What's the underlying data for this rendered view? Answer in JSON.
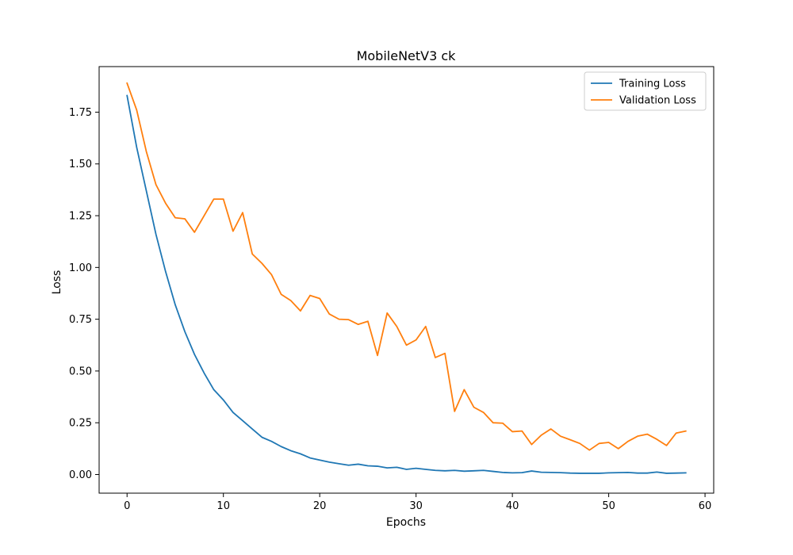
{
  "chart_data": {
    "type": "line",
    "title": "MobileNetV3 ck",
    "xlabel": "Epochs",
    "ylabel": "Loss",
    "xlim": [
      -2.9,
      60.9
    ],
    "ylim": [
      -0.09,
      1.97
    ],
    "xticks": [
      0,
      10,
      20,
      30,
      40,
      50,
      60
    ],
    "yticks": [
      0.0,
      0.25,
      0.5,
      0.75,
      1.0,
      1.25,
      1.5,
      1.75
    ],
    "xtick_labels": [
      "0",
      "10",
      "20",
      "30",
      "40",
      "50",
      "60"
    ],
    "ytick_labels": [
      "0.00",
      "0.25",
      "0.50",
      "0.75",
      "1.00",
      "1.25",
      "1.50",
      "1.75"
    ],
    "grid": false,
    "legend_position": "top-right",
    "x": [
      0,
      1,
      2,
      3,
      4,
      5,
      6,
      7,
      8,
      9,
      10,
      11,
      12,
      13,
      14,
      15,
      16,
      17,
      18,
      19,
      20,
      21,
      22,
      23,
      24,
      25,
      26,
      27,
      28,
      29,
      30,
      31,
      32,
      33,
      34,
      35,
      36,
      37,
      38,
      39,
      40,
      41,
      42,
      43,
      44,
      45,
      46,
      47,
      48,
      49,
      50,
      51,
      52,
      53,
      54,
      55,
      56,
      57,
      58
    ],
    "series": [
      {
        "name": "Training Loss",
        "color": "#1f77b4",
        "values": [
          1.83,
          1.58,
          1.37,
          1.16,
          0.98,
          0.82,
          0.69,
          0.58,
          0.49,
          0.41,
          0.36,
          0.3,
          0.26,
          0.22,
          0.18,
          0.16,
          0.135,
          0.115,
          0.1,
          0.08,
          0.07,
          0.06,
          0.052,
          0.045,
          0.05,
          0.042,
          0.04,
          0.032,
          0.035,
          0.025,
          0.03,
          0.025,
          0.02,
          0.018,
          0.02,
          0.016,
          0.018,
          0.02,
          0.015,
          0.01,
          0.008,
          0.009,
          0.017,
          0.011,
          0.01,
          0.009,
          0.007,
          0.006,
          0.006,
          0.006,
          0.008,
          0.009,
          0.01,
          0.007,
          0.007,
          0.012,
          0.006,
          0.007,
          0.008
        ]
      },
      {
        "name": "Validation Loss",
        "color": "#ff7f0e",
        "values": [
          1.89,
          1.76,
          1.56,
          1.4,
          1.31,
          1.24,
          1.235,
          1.17,
          1.25,
          1.33,
          1.33,
          1.175,
          1.265,
          1.065,
          1.02,
          0.965,
          0.87,
          0.84,
          0.79,
          0.865,
          0.85,
          0.775,
          0.75,
          0.748,
          0.725,
          0.74,
          0.575,
          0.78,
          0.715,
          0.625,
          0.65,
          0.715,
          0.565,
          0.585,
          0.305,
          0.41,
          0.325,
          0.3,
          0.25,
          0.248,
          0.207,
          0.21,
          0.145,
          0.19,
          0.22,
          0.185,
          0.168,
          0.15,
          0.118,
          0.15,
          0.155,
          0.125,
          0.16,
          0.185,
          0.195,
          0.17,
          0.14,
          0.2,
          0.21
        ]
      }
    ]
  }
}
